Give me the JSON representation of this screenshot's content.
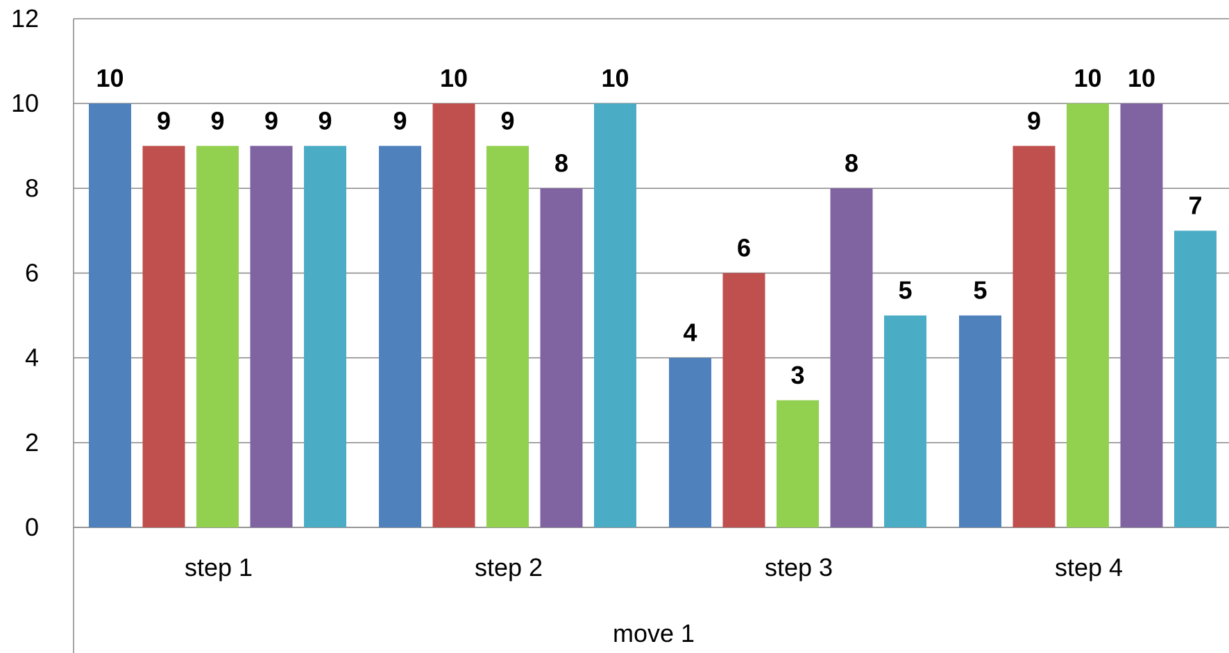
{
  "chart_data": {
    "type": "bar",
    "categories": [
      "step 1",
      "step 2",
      "step 3",
      "step 4"
    ],
    "group_label": "move 1",
    "series": [
      {
        "values": [
          10,
          9,
          4,
          5
        ],
        "color": "#4F81BD"
      },
      {
        "values": [
          9,
          10,
          6,
          9
        ],
        "color": "#C0504D"
      },
      {
        "values": [
          9,
          9,
          3,
          10
        ],
        "color": "#92D050"
      },
      {
        "values": [
          9,
          8,
          8,
          10
        ],
        "color": "#8064A2"
      },
      {
        "values": [
          9,
          10,
          5,
          7
        ],
        "color": "#4BACC6"
      }
    ],
    "yticks": [
      "0",
      "2",
      "4",
      "6",
      "8",
      "10",
      "12"
    ],
    "ylim": [
      0,
      12
    ],
    "grid": true,
    "legend": "none",
    "data_labels": true
  }
}
